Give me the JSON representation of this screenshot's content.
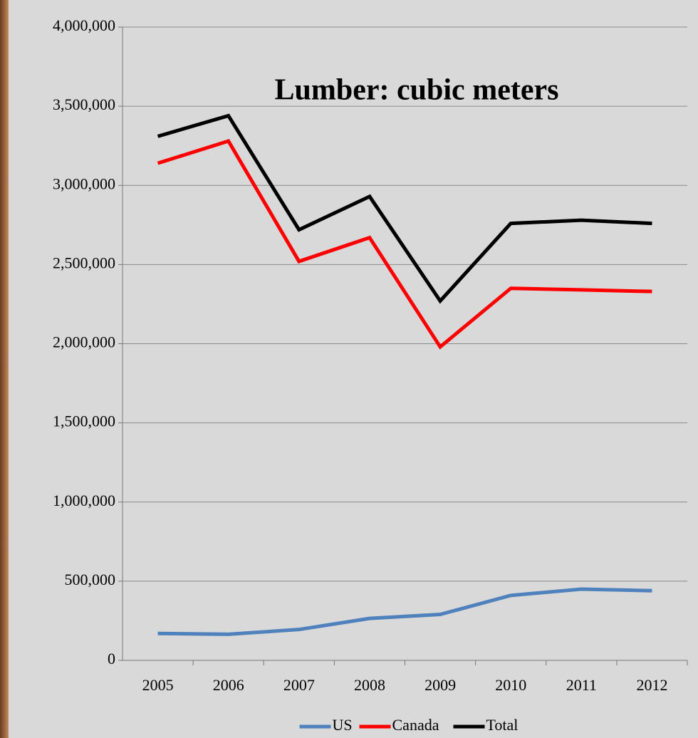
{
  "chart_data": {
    "type": "line",
    "title": "Lumber: cubic meters",
    "categories": [
      "2005",
      "2006",
      "2007",
      "2008",
      "2009",
      "2010",
      "2011",
      "2012"
    ],
    "series": [
      {
        "name": "US",
        "color": "#4f81bd",
        "values": [
          170000,
          165000,
          195000,
          265000,
          290000,
          410000,
          450000,
          440000
        ]
      },
      {
        "name": "Canada",
        "color": "#ff0000",
        "values": [
          3140000,
          3280000,
          2520000,
          2670000,
          1980000,
          2350000,
          2340000,
          2330000
        ]
      },
      {
        "name": "Total",
        "color": "#000000",
        "values": [
          3310000,
          3440000,
          2720000,
          2930000,
          2270000,
          2760000,
          2780000,
          2760000
        ]
      }
    ],
    "ylim": [
      0,
      4000000
    ],
    "yticks": [
      0,
      {
        "value": 500000,
        "label": "500,000"
      },
      {
        "value": 1000000,
        "label": "1,000,000"
      },
      {
        "value": 1500000,
        "label": "1,500,000"
      },
      {
        "value": 2000000,
        "label": "2,000,000"
      },
      {
        "value": 2500000,
        "label": "2,500,000"
      },
      {
        "value": 3000000,
        "label": "3,000,000"
      },
      {
        "value": 3500000,
        "label": "3,500,000"
      },
      {
        "value": 4000000,
        "label": "4,000,000"
      }
    ],
    "grid": true,
    "legend": "bottom"
  }
}
